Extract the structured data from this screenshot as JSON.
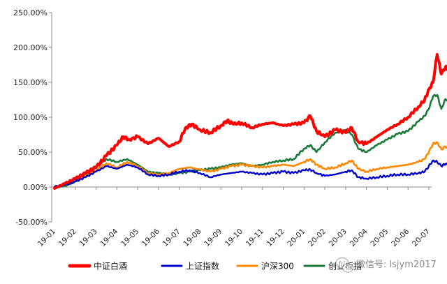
{
  "chart_data": {
    "type": "line",
    "title": "",
    "xlabel": "",
    "ylabel": "",
    "x_ticks": [
      "19-01",
      "19-02",
      "19-03",
      "19-04",
      "19-05",
      "19-06",
      "19-07",
      "19-08",
      "19-09",
      "19-10",
      "19-11",
      "19-12",
      "20-01",
      "20-02",
      "20-03",
      "20-04",
      "20-05",
      "20-06",
      "20-07"
    ],
    "ylim": [
      -50,
      250
    ],
    "y_ticks": [
      -50,
      0,
      50,
      100,
      150,
      200,
      250
    ],
    "y_tick_labels": [
      "-50.00%",
      "0.00%",
      "50.00%",
      "100.00%",
      "150.00%",
      "200.00%",
      "250.00%"
    ],
    "y_unit": "%",
    "grid": false,
    "legend": "bottom",
    "series": [
      {
        "name": "中证白酒",
        "color": "#ff0000",
        "values": [
          [
            0,
            -2
          ],
          [
            0.5,
            5
          ],
          [
            1,
            12
          ],
          [
            1.5,
            20
          ],
          [
            2,
            28
          ],
          [
            2.5,
            45
          ],
          [
            3,
            60
          ],
          [
            3.3,
            72
          ],
          [
            3.6,
            68
          ],
          [
            4,
            72
          ],
          [
            4.5,
            62
          ],
          [
            5,
            70
          ],
          [
            5.5,
            58
          ],
          [
            6,
            65
          ],
          [
            6.3,
            85
          ],
          [
            6.6,
            90
          ],
          [
            7,
            82
          ],
          [
            7.5,
            78
          ],
          [
            8,
            88
          ],
          [
            8.3,
            95
          ],
          [
            8.6,
            90
          ],
          [
            9,
            92
          ],
          [
            9.5,
            85
          ],
          [
            10,
            90
          ],
          [
            10.5,
            92
          ],
          [
            11,
            88
          ],
          [
            11.5,
            90
          ],
          [
            12,
            92
          ],
          [
            12.3,
            102
          ],
          [
            12.6,
            80
          ],
          [
            13,
            72
          ],
          [
            13.5,
            82
          ],
          [
            14,
            78
          ],
          [
            14.3,
            85
          ],
          [
            14.6,
            65
          ],
          [
            15,
            62
          ],
          [
            15.5,
            72
          ],
          [
            16,
            82
          ],
          [
            16.5,
            90
          ],
          [
            17,
            100
          ],
          [
            17.5,
            115
          ],
          [
            17.8,
            125
          ],
          [
            18,
            140
          ],
          [
            18.2,
            150
          ],
          [
            18.4,
            190
          ],
          [
            18.6,
            162
          ],
          [
            18.8,
            172
          ],
          [
            18.95,
            168
          ]
        ]
      },
      {
        "name": "上证指数",
        "color": "#0000cc",
        "values": [
          [
            0,
            0
          ],
          [
            0.5,
            3
          ],
          [
            1,
            8
          ],
          [
            1.5,
            14
          ],
          [
            2,
            22
          ],
          [
            2.5,
            30
          ],
          [
            3,
            26
          ],
          [
            3.5,
            32
          ],
          [
            4,
            28
          ],
          [
            4.5,
            18
          ],
          [
            5,
            16
          ],
          [
            5.5,
            18
          ],
          [
            6,
            22
          ],
          [
            6.5,
            24
          ],
          [
            7,
            20
          ],
          [
            7.5,
            14
          ],
          [
            8,
            18
          ],
          [
            8.5,
            20
          ],
          [
            9,
            22
          ],
          [
            9.5,
            20
          ],
          [
            10,
            18
          ],
          [
            10.5,
            20
          ],
          [
            11,
            22
          ],
          [
            11.5,
            20
          ],
          [
            12,
            24
          ],
          [
            12.3,
            25
          ],
          [
            12.6,
            20
          ],
          [
            13,
            16
          ],
          [
            13.5,
            18
          ],
          [
            14,
            22
          ],
          [
            14.3,
            24
          ],
          [
            14.6,
            14
          ],
          [
            15,
            12
          ],
          [
            15.5,
            14
          ],
          [
            16,
            16
          ],
          [
            16.5,
            18
          ],
          [
            17,
            18
          ],
          [
            17.5,
            20
          ],
          [
            17.8,
            22
          ],
          [
            18,
            30
          ],
          [
            18.2,
            38
          ],
          [
            18.4,
            36
          ],
          [
            18.6,
            30
          ],
          [
            18.8,
            33
          ],
          [
            18.95,
            32
          ]
        ]
      },
      {
        "name": "沪深300",
        "color": "#ff8800",
        "values": [
          [
            0,
            0
          ],
          [
            0.5,
            4
          ],
          [
            1,
            10
          ],
          [
            1.5,
            16
          ],
          [
            2,
            24
          ],
          [
            2.5,
            34
          ],
          [
            3,
            28
          ],
          [
            3.5,
            36
          ],
          [
            4,
            30
          ],
          [
            4.5,
            20
          ],
          [
            5,
            18
          ],
          [
            5.5,
            20
          ],
          [
            6,
            26
          ],
          [
            6.5,
            28
          ],
          [
            7,
            25
          ],
          [
            7.5,
            22
          ],
          [
            8,
            26
          ],
          [
            8.5,
            30
          ],
          [
            9,
            32
          ],
          [
            9.5,
            30
          ],
          [
            10,
            28
          ],
          [
            10.5,
            30
          ],
          [
            11,
            32
          ],
          [
            11.5,
            30
          ],
          [
            12,
            36
          ],
          [
            12.3,
            40
          ],
          [
            12.6,
            32
          ],
          [
            13,
            26
          ],
          [
            13.5,
            28
          ],
          [
            14,
            34
          ],
          [
            14.3,
            38
          ],
          [
            14.6,
            26
          ],
          [
            15,
            22
          ],
          [
            15.5,
            26
          ],
          [
            16,
            28
          ],
          [
            16.5,
            30
          ],
          [
            17,
            32
          ],
          [
            17.5,
            36
          ],
          [
            17.8,
            40
          ],
          [
            18,
            50
          ],
          [
            18.2,
            62
          ],
          [
            18.4,
            64
          ],
          [
            18.6,
            54
          ],
          [
            18.8,
            58
          ],
          [
            18.95,
            56
          ]
        ]
      },
      {
        "name": "创业板指",
        "color": "#1a7a3a",
        "values": [
          [
            0,
            0
          ],
          [
            0.5,
            2
          ],
          [
            1,
            8
          ],
          [
            1.5,
            18
          ],
          [
            2,
            30
          ],
          [
            2.5,
            40
          ],
          [
            3,
            36
          ],
          [
            3.5,
            40
          ],
          [
            4,
            32
          ],
          [
            4.5,
            22
          ],
          [
            5,
            20
          ],
          [
            5.5,
            18
          ],
          [
            6,
            20
          ],
          [
            6.5,
            22
          ],
          [
            7,
            24
          ],
          [
            7.5,
            26
          ],
          [
            8,
            28
          ],
          [
            8.5,
            32
          ],
          [
            9,
            34
          ],
          [
            9.5,
            30
          ],
          [
            10,
            32
          ],
          [
            10.5,
            36
          ],
          [
            11,
            38
          ],
          [
            11.5,
            40
          ],
          [
            12,
            55
          ],
          [
            12.3,
            60
          ],
          [
            12.6,
            50
          ],
          [
            13,
            64
          ],
          [
            13.5,
            78
          ],
          [
            14,
            82
          ],
          [
            14.3,
            75
          ],
          [
            14.6,
            55
          ],
          [
            15,
            50
          ],
          [
            15.5,
            60
          ],
          [
            16,
            68
          ],
          [
            16.5,
            76
          ],
          [
            17,
            80
          ],
          [
            17.5,
            94
          ],
          [
            17.8,
            102
          ],
          [
            18,
            112
          ],
          [
            18.2,
            130
          ],
          [
            18.4,
            132
          ],
          [
            18.6,
            112
          ],
          [
            18.8,
            126
          ],
          [
            18.95,
            124
          ]
        ]
      }
    ]
  },
  "watermark": {
    "icon": "wechat-icon",
    "text": "微信号: lsjym2017"
  }
}
